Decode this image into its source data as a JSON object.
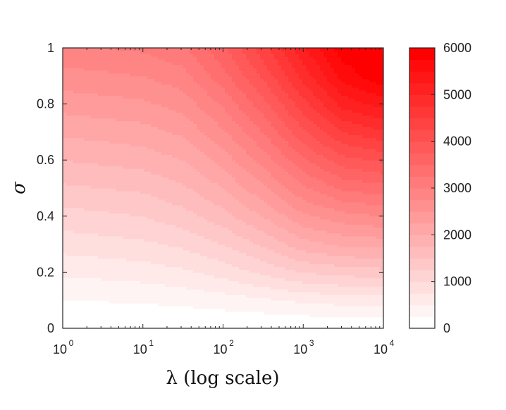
{
  "chart_data": {
    "type": "heatmap",
    "title": "",
    "xlabel": "λ (log scale)",
    "ylabel": "σ",
    "x_scale": "log",
    "xlim": [
      1,
      10000
    ],
    "ylim": [
      0,
      1
    ],
    "x_ticks": [
      {
        "value": 1,
        "base": "10",
        "exp": "0"
      },
      {
        "value": 10,
        "base": "10",
        "exp": "1"
      },
      {
        "value": 100,
        "base": "10",
        "exp": "2"
      },
      {
        "value": 1000,
        "base": "10",
        "exp": "3"
      },
      {
        "value": 10000,
        "base": "10",
        "exp": "4"
      }
    ],
    "y_ticks": [
      {
        "value": 0,
        "label": "0"
      },
      {
        "value": 0.2,
        "label": "0.2"
      },
      {
        "value": 0.4,
        "label": "0.4"
      },
      {
        "value": 0.6,
        "label": "0.6"
      },
      {
        "value": 0.8,
        "label": "0.8"
      },
      {
        "value": 1,
        "label": "1"
      }
    ],
    "colorbar": {
      "min": 0,
      "max": 6000,
      "ticks": [
        {
          "value": 0,
          "label": "0"
        },
        {
          "value": 1000,
          "label": "1000"
        },
        {
          "value": 2000,
          "label": "2000"
        },
        {
          "value": 3000,
          "label": "3000"
        },
        {
          "value": 4000,
          "label": "4000"
        },
        {
          "value": 5000,
          "label": "5000"
        },
        {
          "value": 6000,
          "label": "6000"
        }
      ],
      "color_low": "#ffffff",
      "color_high": "#ff0000"
    },
    "x": [
      1,
      3.16,
      10,
      31.6,
      100,
      316,
      1000,
      3162,
      10000
    ],
    "y": [
      0,
      0.1,
      0.2,
      0.3,
      0.4,
      0.5,
      0.6,
      0.7,
      0.8,
      0.9,
      1.0
    ],
    "z": [
      [
        0,
        0,
        0,
        0,
        0,
        0,
        0,
        0,
        0
      ],
      [
        250,
        260,
        280,
        320,
        380,
        450,
        550,
        600,
        620
      ],
      [
        550,
        580,
        620,
        700,
        850,
        1050,
        1250,
        1350,
        1400
      ],
      [
        850,
        900,
        950,
        1050,
        1250,
        1550,
        1900,
        2050,
        2100
      ],
      [
        1150,
        1200,
        1250,
        1400,
        1650,
        2000,
        2450,
        2650,
        2750
      ],
      [
        1450,
        1500,
        1550,
        1700,
        2000,
        2450,
        2950,
        3300,
        3400
      ],
      [
        1750,
        1800,
        1850,
        2000,
        2350,
        2850,
        3450,
        3900,
        4050
      ],
      [
        2050,
        2100,
        2150,
        2300,
        2700,
        3250,
        3950,
        4500,
        4700
      ],
      [
        2350,
        2400,
        2450,
        2600,
        3050,
        3650,
        4400,
        5100,
        5350
      ],
      [
        2650,
        2700,
        2750,
        2900,
        3400,
        4050,
        4850,
        5600,
        5950
      ],
      [
        2950,
        3000,
        3050,
        3200,
        3700,
        4400,
        5200,
        5900,
        6000
      ]
    ]
  }
}
